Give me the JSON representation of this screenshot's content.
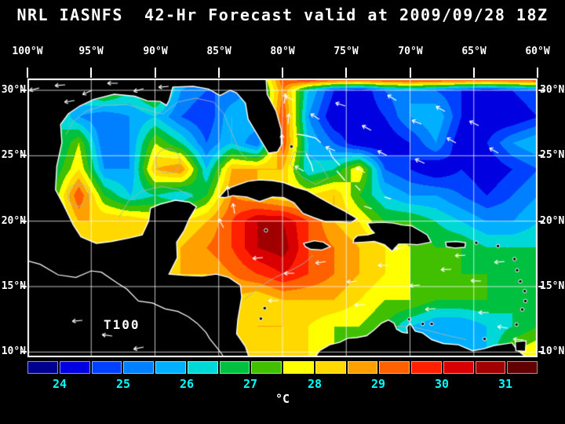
{
  "title": "NRL IASNFS  42-Hr Forecast valid at 2009/09/28 18Z",
  "map": {
    "model_label": "T100",
    "lon_ticks": [
      "100°W",
      "95°W",
      "90°W",
      "85°W",
      "80°W",
      "75°W",
      "70°W",
      "65°W",
      "60°W"
    ],
    "lat_ticks": [
      "30°N",
      "25°N",
      "20°N",
      "15°N",
      "10°N"
    ]
  },
  "colorbar": {
    "min": 23.5,
    "max": 31.5,
    "step": 0.5,
    "unit": "°C",
    "label_color": "#00ffff",
    "tick_labels": [
      "24",
      "25",
      "26",
      "27",
      "28",
      "29",
      "30",
      "31"
    ],
    "colors": [
      "#00008f",
      "#0000e0",
      "#0040ff",
      "#0080ff",
      "#00b0ff",
      "#00d8d8",
      "#00c040",
      "#40c000",
      "#ffff00",
      "#ffd800",
      "#ffa000",
      "#ff6000",
      "#ff2000",
      "#d80000",
      "#a00000",
      "#600000"
    ]
  },
  "chart_data": {
    "type": "heatmap",
    "title": "NRL IASNFS 42-Hr Forecast valid at 2009/09/28 18Z",
    "variable": "T100",
    "units": "°C",
    "lon_axis_deg_W": [
      100,
      95,
      90,
      85,
      80,
      75,
      70,
      65,
      60
    ],
    "lat_axis_deg_N": [
      30,
      25,
      20,
      15,
      10
    ],
    "value_range": [
      23.5,
      31.5
    ],
    "grid_lons_W": [
      100,
      98,
      96,
      94,
      92,
      90,
      88,
      86,
      84,
      82,
      80,
      78,
      76,
      74,
      72,
      70,
      68,
      66,
      64,
      62,
      60
    ],
    "grid_lats_N": [
      31,
      30,
      28,
      26,
      24,
      22,
      20,
      18,
      16,
      14,
      12,
      10
    ],
    "values": [
      [
        25,
        25,
        26,
        26.5,
        27,
        27,
        26,
        25.5,
        25,
        26.5,
        29.5,
        30.6,
        30.6,
        30.6,
        30.6,
        30.6,
        30.6,
        30.6,
        30.6,
        30.6,
        30.6
      ],
      [
        25,
        25,
        26.5,
        27.5,
        26.5,
        27.5,
        25.5,
        25,
        25,
        26,
        29,
        26,
        24.5,
        24,
        25,
        25.5,
        25,
        24.5,
        24,
        24.5,
        25
      ],
      [
        25.5,
        27,
        25.5,
        25,
        25.5,
        26,
        25,
        24.5,
        26,
        26,
        29.5,
        25.5,
        24,
        24,
        24.5,
        25.5,
        26,
        24.5,
        24,
        24,
        24.5
      ],
      [
        25,
        26,
        27.5,
        25,
        25.5,
        27.5,
        26.5,
        25,
        26,
        25,
        29.5,
        26,
        25,
        24,
        24,
        24.5,
        25.5,
        24,
        24.5,
        25.5,
        26
      ],
      [
        25,
        26.5,
        28,
        25.5,
        25.5,
        28.5,
        29,
        26,
        28.5,
        28.5,
        28.5,
        26,
        26.5,
        28,
        25,
        24.5,
        24,
        24.5,
        24,
        24.5,
        25
      ],
      [
        25,
        27,
        29.5,
        27,
        26,
        26.5,
        26,
        27,
        29,
        28.5,
        28,
        28,
        28.5,
        27,
        26,
        25.5,
        25.5,
        25,
        24.5,
        25,
        25.5
      ],
      [
        25,
        27,
        28.5,
        28.5,
        28.5,
        28,
        28,
        28.5,
        29.5,
        30.5,
        30.5,
        29.5,
        28.5,
        28,
        27,
        27,
        26.5,
        26,
        25.5,
        25.5,
        26
      ],
      [
        25,
        27,
        28,
        28,
        28,
        28,
        28.5,
        29,
        29.5,
        30.5,
        30.8,
        29.5,
        29,
        28.5,
        28,
        27.5,
        27,
        27,
        26.5,
        26.5,
        26.5
      ],
      [
        25,
        26,
        27,
        27.5,
        28,
        28,
        28.5,
        28.5,
        29,
        29.5,
        30,
        29.5,
        29,
        28.5,
        28,
        27.5,
        27.5,
        27,
        27,
        26.5,
        27
      ],
      [
        25,
        25,
        26,
        26.5,
        27,
        27.5,
        28,
        28,
        28.5,
        28,
        28.5,
        28.5,
        28.5,
        28,
        27.5,
        27.5,
        27,
        27,
        27,
        26.5,
        26.5
      ],
      [
        25,
        25,
        26,
        26,
        26.5,
        27,
        27.5,
        28,
        28,
        28.5,
        28.5,
        28,
        27.5,
        27.5,
        27,
        26,
        25.5,
        25.5,
        26,
        26.5,
        27
      ],
      [
        25,
        25,
        26,
        26,
        26.5,
        27,
        27.5,
        28,
        28,
        28,
        28,
        28,
        27.5,
        27,
        27,
        26,
        25.5,
        25.5,
        26,
        27.5,
        28
      ]
    ]
  }
}
